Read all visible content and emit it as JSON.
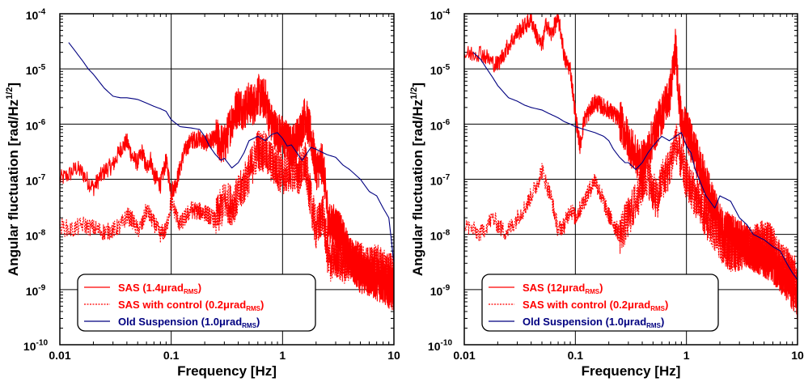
{
  "chart_data": [
    {
      "type": "line",
      "log_x": true,
      "log_y": true,
      "xlabel": "Frequency [Hz]",
      "ylabel": "Angular fluctuation [rad/Hz^1/2]",
      "xlim": [
        0.01,
        10
      ],
      "ylim": [
        1e-10,
        0.0001
      ],
      "x_ticks": [
        "0.01",
        "0.1",
        "1",
        "10"
      ],
      "y_ticks": [
        "10^-10",
        "10^-9",
        "10^-8",
        "10^-7",
        "10^-6",
        "10^-5",
        "10^-4"
      ],
      "grid": true,
      "legend_position": "bottom-left",
      "series": [
        {
          "name": "SAS (1.4μrad_RMS)",
          "color": "#ff0000",
          "style": "solid",
          "noisy": true,
          "x": [
            0.01,
            0.012,
            0.014,
            0.016,
            0.018,
            0.02,
            0.023,
            0.026,
            0.03,
            0.035,
            0.04,
            0.045,
            0.05,
            0.055,
            0.06,
            0.065,
            0.07,
            0.08,
            0.09,
            0.1,
            0.11,
            0.12,
            0.13,
            0.15,
            0.18,
            0.2,
            0.25,
            0.3,
            0.35,
            0.4,
            0.45,
            0.5,
            0.55,
            0.6,
            0.65,
            0.7,
            0.75,
            0.8,
            0.9,
            1.0,
            1.2,
            1.4,
            1.6,
            1.8,
            2.0,
            2.3,
            2.6,
            3.0,
            3.5,
            4.0,
            5.0,
            6.0,
            7.0,
            8.0,
            9.0,
            10.0
          ],
          "y": [
            1e-07,
            1.2e-07,
            1.6e-07,
            1.3e-07,
            9e-08,
            7e-08,
            1.1e-07,
            1.5e-07,
            1.8e-07,
            3.5e-07,
            4.8e-07,
            2.5e-07,
            2e-07,
            3.2e-07,
            1.5e-07,
            2.4e-07,
            1.2e-07,
            8e-08,
            2.2e-07,
            6e-08,
            8e-08,
            1.6e-07,
            3e-07,
            5e-07,
            5.5e-07,
            4.5e-07,
            5.5e-07,
            4e-07,
            1.2e-06,
            2.2e-06,
            1.8e-06,
            2.5e-06,
            2.2e-06,
            3.5e-06,
            2.8e-06,
            3e-06,
            1.5e-06,
            1e-06,
            7e-07,
            6e-07,
            4e-07,
            6e-07,
            1.5e-06,
            6e-07,
            1.5e-07,
            2e-07,
            1.5e-08,
            1.5e-08,
            8e-09,
            4e-09,
            2e-09,
            1.8e-09,
            1.5e-09,
            1.3e-09,
            1.1e-09,
            1e-09
          ]
        },
        {
          "name": "SAS with control (0.2μrad_RMS)",
          "color": "#ff0000",
          "style": "dotted",
          "noisy": true,
          "x": [
            0.01,
            0.013,
            0.016,
            0.02,
            0.025,
            0.03,
            0.035,
            0.04,
            0.045,
            0.05,
            0.055,
            0.06,
            0.07,
            0.08,
            0.09,
            0.1,
            0.12,
            0.15,
            0.2,
            0.25,
            0.3,
            0.35,
            0.4,
            0.45,
            0.5,
            0.55,
            0.6,
            0.7,
            0.8,
            0.9,
            1.0,
            1.2,
            1.4,
            1.6,
            1.8,
            2.0,
            2.3,
            2.6,
            3.0,
            3.5,
            4.0,
            5.0,
            6.0,
            7.0,
            8.0,
            9.0,
            10.0
          ],
          "y": [
            1.4e-08,
            1.2e-08,
            1.5e-08,
            1.3e-08,
            1.1e-08,
            1.2e-08,
            1.4e-08,
            2.2e-08,
            1.8e-08,
            1.2e-08,
            1.5e-08,
            2.8e-08,
            1.6e-08,
            1e-08,
            1.2e-08,
            4e-08,
            1.5e-08,
            2.8e-08,
            2.5e-08,
            1.8e-08,
            4e-08,
            3.5e-08,
            5e-08,
            8e-08,
            1.3e-07,
            2.2e-07,
            3.5e-07,
            3e-07,
            2e-07,
            1.5e-07,
            1.2e-07,
            1.5e-07,
            1.2e-07,
            2e-07,
            4e-08,
            1.2e-08,
            2.5e-08,
            3e-09,
            4e-09,
            3e-09,
            3.5e-09,
            3e-09,
            2.5e-09,
            2.8e-09,
            2.2e-09,
            2e-09,
            1.8e-09
          ]
        },
        {
          "name": "Old Suspension (1.0μrad_RMS)",
          "color": "#000080",
          "style": "solid",
          "noisy": false,
          "x": [
            0.012,
            0.014,
            0.016,
            0.018,
            0.02,
            0.025,
            0.03,
            0.035,
            0.04,
            0.05,
            0.06,
            0.07,
            0.08,
            0.09,
            0.1,
            0.12,
            0.15,
            0.18,
            0.2,
            0.22,
            0.25,
            0.28,
            0.3,
            0.35,
            0.4,
            0.45,
            0.5,
            0.55,
            0.6,
            0.7,
            0.8,
            0.9,
            1.0,
            1.1,
            1.2,
            1.5,
            1.8,
            2.0,
            2.5,
            3.0,
            3.5,
            4.0,
            5.0,
            6.0,
            7.0,
            8.0,
            9.0,
            10.0
          ],
          "y": [
            3e-05,
            2e-05,
            1.4e-05,
            1e-05,
            8e-06,
            4.5e-06,
            3.2e-06,
            3e-06,
            3e-06,
            2.8e-06,
            2.4e-06,
            2.1e-06,
            1.9e-06,
            1.7e-06,
            1.2e-06,
            9e-07,
            8.5e-07,
            8e-07,
            6e-07,
            4e-07,
            2.8e-07,
            2.2e-07,
            2.4e-07,
            1.6e-07,
            2e-07,
            3e-07,
            5e-07,
            5.5e-07,
            6e-07,
            5e-07,
            6.5e-07,
            7e-07,
            5.5e-07,
            4e-07,
            4.2e-07,
            2.2e-07,
            3.8e-07,
            3.5e-07,
            2.8e-07,
            2.5e-07,
            1.8e-07,
            1.5e-07,
            1e-07,
            6e-08,
            5e-08,
            3e-08,
            2e-08,
            3e-09
          ]
        }
      ],
      "legend": [
        {
          "base": "SAS (1.4μrad",
          "sub": "RMS",
          "tail": ")",
          "style": "solid",
          "color": "#ff0000"
        },
        {
          "base": "SAS with control (0.2μrad",
          "sub": "RMS",
          "tail": ")",
          "style": "dotted",
          "color": "#ff0000"
        },
        {
          "base": "Old Suspension (1.0μrad",
          "sub": "RMS",
          "tail": ")",
          "style": "solid",
          "color": "#000080"
        }
      ]
    },
    {
      "type": "line",
      "log_x": true,
      "log_y": true,
      "xlabel": "Frequency [Hz]",
      "ylabel": "Angular fluctuation [rad/Hz^1/2]",
      "xlim": [
        0.01,
        10
      ],
      "ylim": [
        1e-10,
        0.0001
      ],
      "x_ticks": [
        "0.01",
        "0.1",
        "1",
        "10"
      ],
      "y_ticks": [
        "10^-10",
        "10^-9",
        "10^-8",
        "10^-7",
        "10^-6",
        "10^-5",
        "10^-4"
      ],
      "grid": true,
      "legend_position": "bottom-left",
      "series": [
        {
          "name": "SAS (12μrad_RMS)",
          "color": "#ff0000",
          "style": "solid",
          "noisy": true,
          "x": [
            0.01,
            0.012,
            0.014,
            0.016,
            0.018,
            0.02,
            0.023,
            0.026,
            0.03,
            0.035,
            0.04,
            0.045,
            0.05,
            0.055,
            0.06,
            0.065,
            0.07,
            0.075,
            0.08,
            0.09,
            0.1,
            0.11,
            0.12,
            0.15,
            0.2,
            0.25,
            0.3,
            0.35,
            0.4,
            0.45,
            0.5,
            0.55,
            0.6,
            0.65,
            0.7,
            0.75,
            0.8,
            0.85,
            0.9,
            1.0,
            1.2,
            1.5,
            2.0,
            2.5,
            3.0,
            4.0,
            5.0,
            6.0,
            7.0,
            8.0,
            9.0,
            10.0
          ],
          "y": [
            1.8e-05,
            1.9e-05,
            2e-05,
            1.6e-05,
            1.3e-05,
            1.2e-05,
            2e-05,
            3e-05,
            4.5e-05,
            6e-05,
            8e-05,
            4e-05,
            2.5e-05,
            7e-05,
            4e-05,
            6e-05,
            8e-05,
            4e-05,
            1.5e-05,
            1e-05,
            1.5e-06,
            4e-07,
            1.2e-06,
            2.5e-06,
            1.8e-06,
            1.2e-06,
            5e-07,
            2.5e-07,
            2e-07,
            3e-07,
            6e-07,
            1e-06,
            1.5e-06,
            2.5e-06,
            3e-06,
            8e-06,
            2.5e-05,
            4e-06,
            1e-06,
            8e-07,
            3e-07,
            8e-08,
            1.5e-08,
            1e-08,
            8e-09,
            5e-09,
            4e-09,
            3e-09,
            2e-09,
            1.5e-09,
            1e-09,
            6e-10
          ]
        },
        {
          "name": "SAS with control (0.2μrad_RMS)",
          "color": "#ff0000",
          "style": "dotted",
          "noisy": true,
          "x": [
            0.01,
            0.012,
            0.014,
            0.016,
            0.018,
            0.02,
            0.023,
            0.026,
            0.03,
            0.035,
            0.04,
            0.045,
            0.05,
            0.055,
            0.06,
            0.07,
            0.08,
            0.09,
            0.1,
            0.12,
            0.15,
            0.2,
            0.25,
            0.3,
            0.35,
            0.4,
            0.45,
            0.5,
            0.55,
            0.6,
            0.7,
            0.8,
            0.9,
            1.0,
            1.2,
            1.5,
            2.0,
            2.5,
            3.0,
            4.0,
            5.0,
            6.0,
            7.0,
            8.0,
            9.0,
            10.0
          ],
          "y": [
            1.5e-08,
            1.2e-08,
            1e-08,
            1.5e-08,
            2e-08,
            1.5e-08,
            1.1e-08,
            1.3e-08,
            2e-08,
            3e-08,
            5e-08,
            8e-08,
            1.5e-07,
            8e-08,
            5e-08,
            1.2e-08,
            1.5e-08,
            3e-08,
            2e-08,
            4e-08,
            1e-07,
            2.2e-08,
            1e-08,
            2e-08,
            4e-08,
            8e-08,
            1.2e-07,
            6e-08,
            4e-08,
            1e-07,
            1.5e-07,
            5e-07,
            2e-07,
            1e-07,
            5e-08,
            2e-08,
            8e-09,
            5e-09,
            5e-09,
            6e-09,
            8e-09,
            6e-09,
            3e-09,
            2.5e-09,
            2e-09,
            1.5e-09
          ]
        },
        {
          "name": "Old Suspension (1.0μrad_RMS)",
          "color": "#000080",
          "style": "solid",
          "noisy": false,
          "x": [
            0.012,
            0.014,
            0.016,
            0.018,
            0.02,
            0.025,
            0.03,
            0.035,
            0.04,
            0.05,
            0.06,
            0.07,
            0.08,
            0.09,
            0.1,
            0.12,
            0.15,
            0.18,
            0.2,
            0.22,
            0.25,
            0.28,
            0.3,
            0.35,
            0.4,
            0.45,
            0.5,
            0.55,
            0.6,
            0.7,
            0.8,
            0.9,
            1.0,
            1.1,
            1.2,
            1.5,
            1.8,
            2.0,
            2.5,
            3.0,
            3.5,
            4.0,
            5.0,
            6.0,
            7.0,
            8.0,
            9.0,
            10.0
          ],
          "y": [
            2e-05,
            1.5e-05,
            1e-05,
            7e-06,
            5e-06,
            3e-06,
            2.6e-06,
            2.2e-06,
            2e-06,
            1.8e-06,
            1.5e-06,
            1.3e-06,
            1.1e-06,
            1e-06,
            9e-07,
            8e-07,
            7e-07,
            6e-07,
            5e-07,
            3.5e-07,
            2.5e-07,
            2e-07,
            2e-07,
            1.5e-07,
            2e-07,
            3e-07,
            4e-07,
            5e-07,
            6e-07,
            5e-07,
            6e-07,
            7e-07,
            4e-07,
            3e-07,
            1.5e-07,
            5e-08,
            3e-08,
            5e-08,
            4e-08,
            2e-08,
            1.5e-08,
            1e-08,
            8e-09,
            6e-09,
            5e-09,
            3e-09,
            2e-09,
            1.5e-09
          ]
        }
      ],
      "legend": [
        {
          "base": "SAS (12μrad",
          "sub": "RMS",
          "tail": ")",
          "style": "solid",
          "color": "#ff0000"
        },
        {
          "base": "SAS with control (0.2μrad",
          "sub": "RMS",
          "tail": ")",
          "style": "dotted",
          "color": "#ff0000"
        },
        {
          "base": "Old Suspension (1.0μrad",
          "sub": "RMS",
          "tail": ")",
          "style": "solid",
          "color": "#000080"
        }
      ]
    }
  ]
}
